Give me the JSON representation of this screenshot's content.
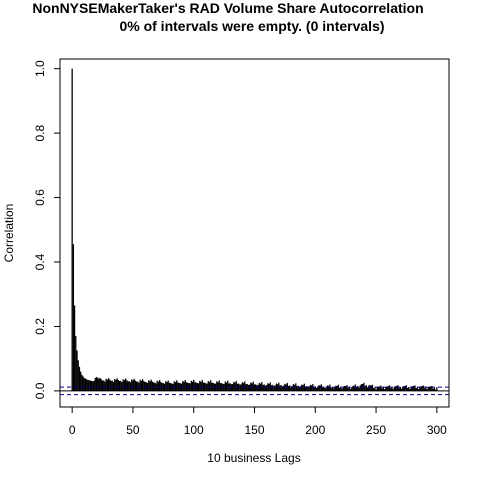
{
  "chart_data": {
    "type": "bar",
    "title": "NonNYSEMakerTaker's RAD Volume Share Autocorrelation",
    "subtitle": "0% of intervals were empty. (0 intervals)",
    "xlabel": "10 business Lags",
    "ylabel": "Correlation",
    "xlim": [
      -10,
      310
    ],
    "ylim": [
      -0.05,
      1.03
    ],
    "x_ticks": [
      0,
      50,
      100,
      150,
      200,
      250,
      300
    ],
    "y_ticks": [
      0.0,
      0.2,
      0.4,
      0.6,
      0.8,
      1.0
    ],
    "grid": false,
    "confidence_band": [
      -0.0115,
      0.0115
    ],
    "acf_head": [
      1.0,
      0.455,
      0.265,
      0.17,
      0.125,
      0.095,
      0.075,
      0.06,
      0.05,
      0.045,
      0.04,
      0.038,
      0.036,
      0.034,
      0.033,
      0.032,
      0.031,
      0.03,
      0.031,
      0.04,
      0.043,
      0.041,
      0.038
    ],
    "acf_tail_trend": [
      [
        22,
        0.035
      ],
      [
        50,
        0.032
      ],
      [
        80,
        0.026
      ],
      [
        100,
        0.028
      ],
      [
        130,
        0.025
      ],
      [
        150,
        0.022
      ],
      [
        180,
        0.018
      ],
      [
        200,
        0.015
      ],
      [
        230,
        0.012
      ],
      [
        240,
        0.02
      ],
      [
        250,
        0.011
      ],
      [
        270,
        0.013
      ],
      [
        290,
        0.012
      ],
      [
        300,
        0.01
      ]
    ],
    "max_lag": 300
  }
}
